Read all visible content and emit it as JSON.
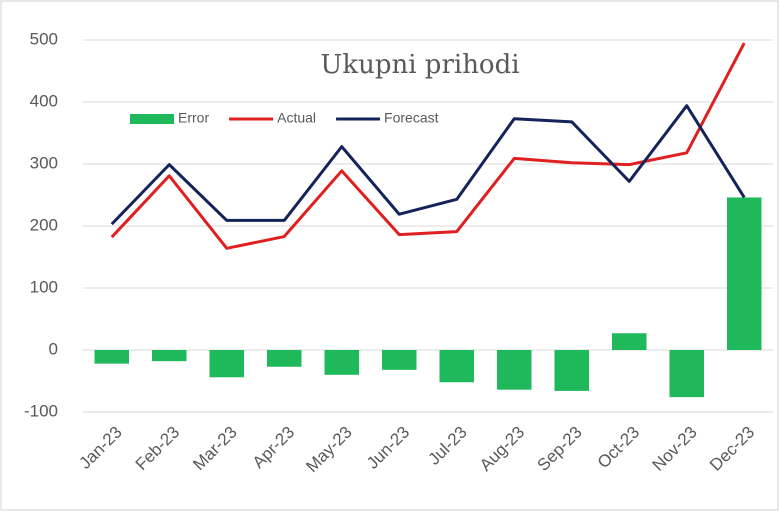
{
  "chart_data": {
    "type": "combo",
    "title": "Ukupni prihodi",
    "categories": [
      "Jan-23",
      "Feb-23",
      "Mar-23",
      "Apr-23",
      "May-23",
      "Jun-23",
      "Jul-23",
      "Aug-23",
      "Sep-23",
      "Oct-23",
      "Nov-23",
      "Dec-23"
    ],
    "series": [
      {
        "name": "Error",
        "type": "bar",
        "color": "#1fb85a",
        "values": [
          -22,
          -18,
          -44,
          -27,
          -40,
          -32,
          -52,
          -64,
          -66,
          27,
          -76,
          246
        ]
      },
      {
        "name": "Actual",
        "type": "line",
        "color": "#e02020",
        "values": [
          182,
          281,
          164,
          183,
          289,
          186,
          191,
          309,
          302,
          299,
          318,
          495
        ]
      },
      {
        "name": "Forecast",
        "type": "line",
        "color": "#14245a",
        "values": [
          203,
          299,
          209,
          209,
          328,
          219,
          243,
          373,
          368,
          272,
          394,
          246
        ]
      }
    ],
    "ylim": [
      -100,
      500
    ],
    "yticks": [
      -100,
      0,
      100,
      200,
      300,
      400,
      500
    ],
    "grid": true,
    "legend": "top"
  }
}
